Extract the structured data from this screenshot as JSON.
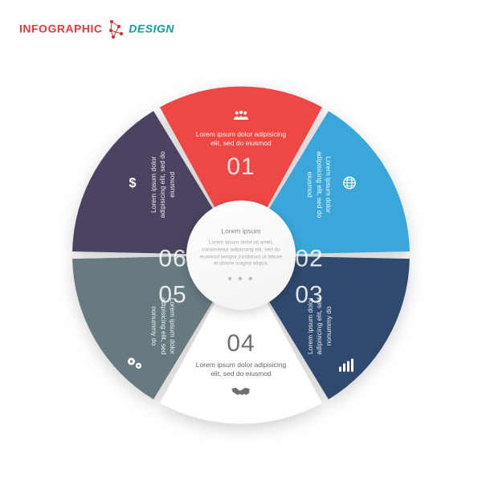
{
  "logo": {
    "word1": "INFOGRAPHIC",
    "word2": "DESIGN"
  },
  "wheel": {
    "type": "pie-infographic",
    "outer_radius": 210,
    "inner_gap_deg": 2.5,
    "background": "#ffffff",
    "segments": [
      {
        "num": "01",
        "color": "#ef4844",
        "text_color": "#ffffff",
        "icon": "people-icon",
        "text": "Lorem ipsum dolor adipisicing elit, sed do eiusmod"
      },
      {
        "num": "02",
        "color": "#3aa7db",
        "text_color": "#ffffff",
        "icon": "globe-icon",
        "text": "Lorem ipsum dolor adipisicing elit, sed do eiusmod"
      },
      {
        "num": "03",
        "color": "#2f4a6e",
        "text_color": "#ffffff",
        "icon": "bars-icon",
        "text": "Lorem ipsum dolor adipisicing elit, sed nonummy do"
      },
      {
        "num": "04",
        "color": "#ffffff",
        "text_color": "#565656",
        "icon": "handshake-icon",
        "text": "Lorem ipsum dolor adipisicing elit, sed do eiusmod"
      },
      {
        "num": "05",
        "color": "#667a7f",
        "text_color": "#ffffff",
        "icon": "gears-icon",
        "text": "Lorem ipsum dolor adipisicing elit, sed nonummy do"
      },
      {
        "num": "06",
        "color": "#4c4360",
        "text_color": "#ffffff",
        "icon": "dollar-icon",
        "text": "Lorem ipsum dolor adipisicing elit, sed do eiusmod"
      }
    ],
    "hub": {
      "title": "Lorem ipsum",
      "body": "Lorem ipsum dolor sit amet, consectetur adipiscing elit, sed do eiusmod tempor incididunt ut labore et dolore magna aliqua."
    }
  }
}
